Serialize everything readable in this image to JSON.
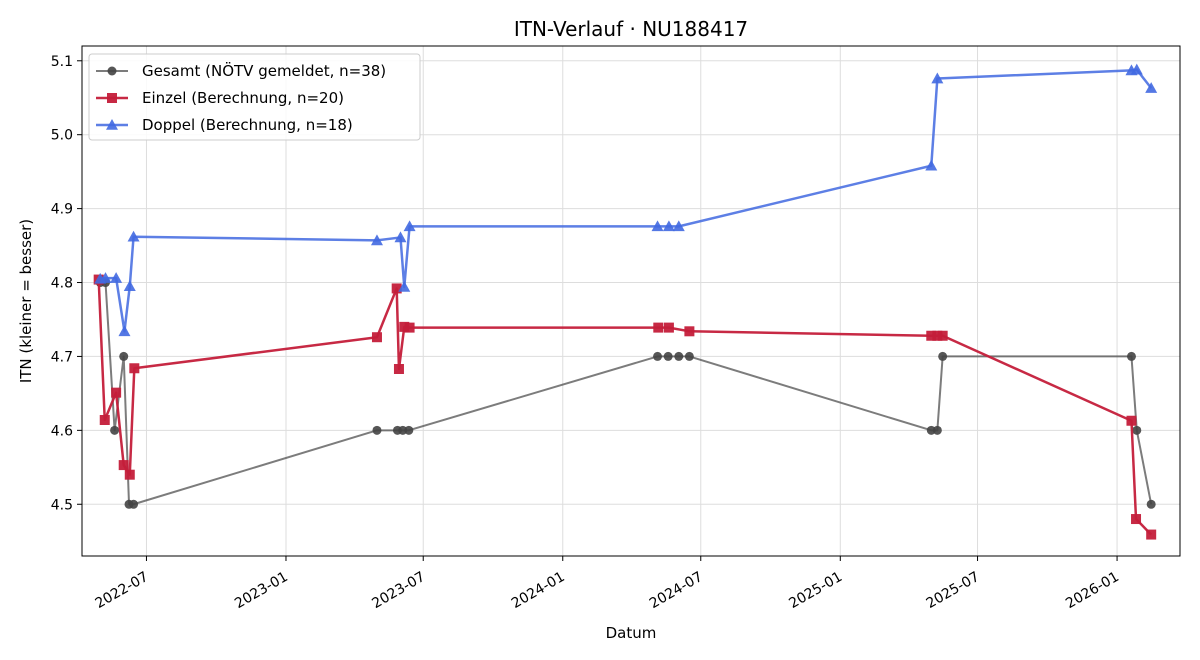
{
  "chart_data": {
    "type": "line",
    "title": "ITN-Verlauf · NU188417",
    "xlabel": "Datum",
    "ylabel": "ITN  (kleiner = besser)",
    "ylim": [
      4.43,
      5.12
    ],
    "xlim": [
      "2022-04-07",
      "2026-03-25"
    ],
    "x_ticks": [
      "2022-07",
      "2023-01",
      "2023-07",
      "2024-01",
      "2024-07",
      "2025-01",
      "2025-07",
      "2026-01"
    ],
    "y_ticks": [
      4.5,
      4.6,
      4.7,
      4.8,
      4.9,
      5.0,
      5.1
    ],
    "y_tick_labels": [
      "4.5",
      "4.6",
      "4.7",
      "4.8",
      "4.9",
      "5.0",
      "5.1"
    ],
    "grid": true,
    "legend_position": "top-left",
    "series": [
      {
        "name": "Gesamt (NÖTV gemeldet, n=38)",
        "color": "#444444",
        "marker": "circle",
        "points": [
          {
            "x": "2022-05-01",
            "y": 4.8
          },
          {
            "x": "2022-05-08",
            "y": 4.8
          },
          {
            "x": "2022-05-20",
            "y": 4.6
          },
          {
            "x": "2022-06-01",
            "y": 4.7
          },
          {
            "x": "2022-06-08",
            "y": 4.5
          },
          {
            "x": "2022-06-14",
            "y": 4.5
          },
          {
            "x": "2023-05-01",
            "y": 4.6
          },
          {
            "x": "2023-05-28",
            "y": 4.6
          },
          {
            "x": "2023-06-04",
            "y": 4.6
          },
          {
            "x": "2023-06-12",
            "y": 4.6
          },
          {
            "x": "2024-05-05",
            "y": 4.7
          },
          {
            "x": "2024-05-19",
            "y": 4.7
          },
          {
            "x": "2024-06-02",
            "y": 4.7
          },
          {
            "x": "2024-06-16",
            "y": 4.7
          },
          {
            "x": "2025-05-01",
            "y": 4.6
          },
          {
            "x": "2025-05-09",
            "y": 4.6
          },
          {
            "x": "2025-05-16",
            "y": 4.7
          },
          {
            "x": "2026-01-20",
            "y": 4.7
          },
          {
            "x": "2026-01-27",
            "y": 4.6
          },
          {
            "x": "2026-02-15",
            "y": 4.5
          }
        ]
      },
      {
        "name": "Einzel (Berechnung, n=20)",
        "color": "#c41e3a",
        "marker": "square",
        "points": [
          {
            "x": "2022-04-29",
            "y": 4.804
          },
          {
            "x": "2022-05-07",
            "y": 4.614
          },
          {
            "x": "2022-05-22",
            "y": 4.651
          },
          {
            "x": "2022-06-01",
            "y": 4.553
          },
          {
            "x": "2022-06-09",
            "y": 4.54
          },
          {
            "x": "2022-06-15",
            "y": 4.684
          },
          {
            "x": "2023-05-01",
            "y": 4.726
          },
          {
            "x": "2023-05-27",
            "y": 4.792
          },
          {
            "x": "2023-05-30",
            "y": 4.683
          },
          {
            "x": "2023-06-06",
            "y": 4.74
          },
          {
            "x": "2023-06-13",
            "y": 4.739
          },
          {
            "x": "2024-05-06",
            "y": 4.739
          },
          {
            "x": "2024-05-20",
            "y": 4.739
          },
          {
            "x": "2024-06-16",
            "y": 4.734
          },
          {
            "x": "2025-05-01",
            "y": 4.728
          },
          {
            "x": "2025-05-09",
            "y": 4.728
          },
          {
            "x": "2025-05-16",
            "y": 4.728
          },
          {
            "x": "2026-01-20",
            "y": 4.613
          },
          {
            "x": "2026-01-26",
            "y": 4.48
          },
          {
            "x": "2026-02-15",
            "y": 4.459
          }
        ]
      },
      {
        "name": "Doppel (Berechnung, n=18)",
        "color": "#4169e1",
        "marker": "triangle",
        "points": [
          {
            "x": "2022-05-01",
            "y": 4.805
          },
          {
            "x": "2022-05-08",
            "y": 4.806
          },
          {
            "x": "2022-05-22",
            "y": 4.806
          },
          {
            "x": "2022-06-02",
            "y": 4.734
          },
          {
            "x": "2022-06-09",
            "y": 4.795
          },
          {
            "x": "2022-06-14",
            "y": 4.862
          },
          {
            "x": "2023-05-01",
            "y": 4.857
          },
          {
            "x": "2023-06-01",
            "y": 4.861
          },
          {
            "x": "2023-06-06",
            "y": 4.794
          },
          {
            "x": "2023-06-13",
            "y": 4.876
          },
          {
            "x": "2024-05-05",
            "y": 4.876
          },
          {
            "x": "2024-05-20",
            "y": 4.876
          },
          {
            "x": "2024-06-02",
            "y": 4.876
          },
          {
            "x": "2025-05-01",
            "y": 4.958
          },
          {
            "x": "2025-05-09",
            "y": 5.076
          },
          {
            "x": "2026-01-20",
            "y": 5.087
          },
          {
            "x": "2026-01-27",
            "y": 5.088
          },
          {
            "x": "2026-02-15",
            "y": 5.063
          }
        ]
      }
    ]
  }
}
